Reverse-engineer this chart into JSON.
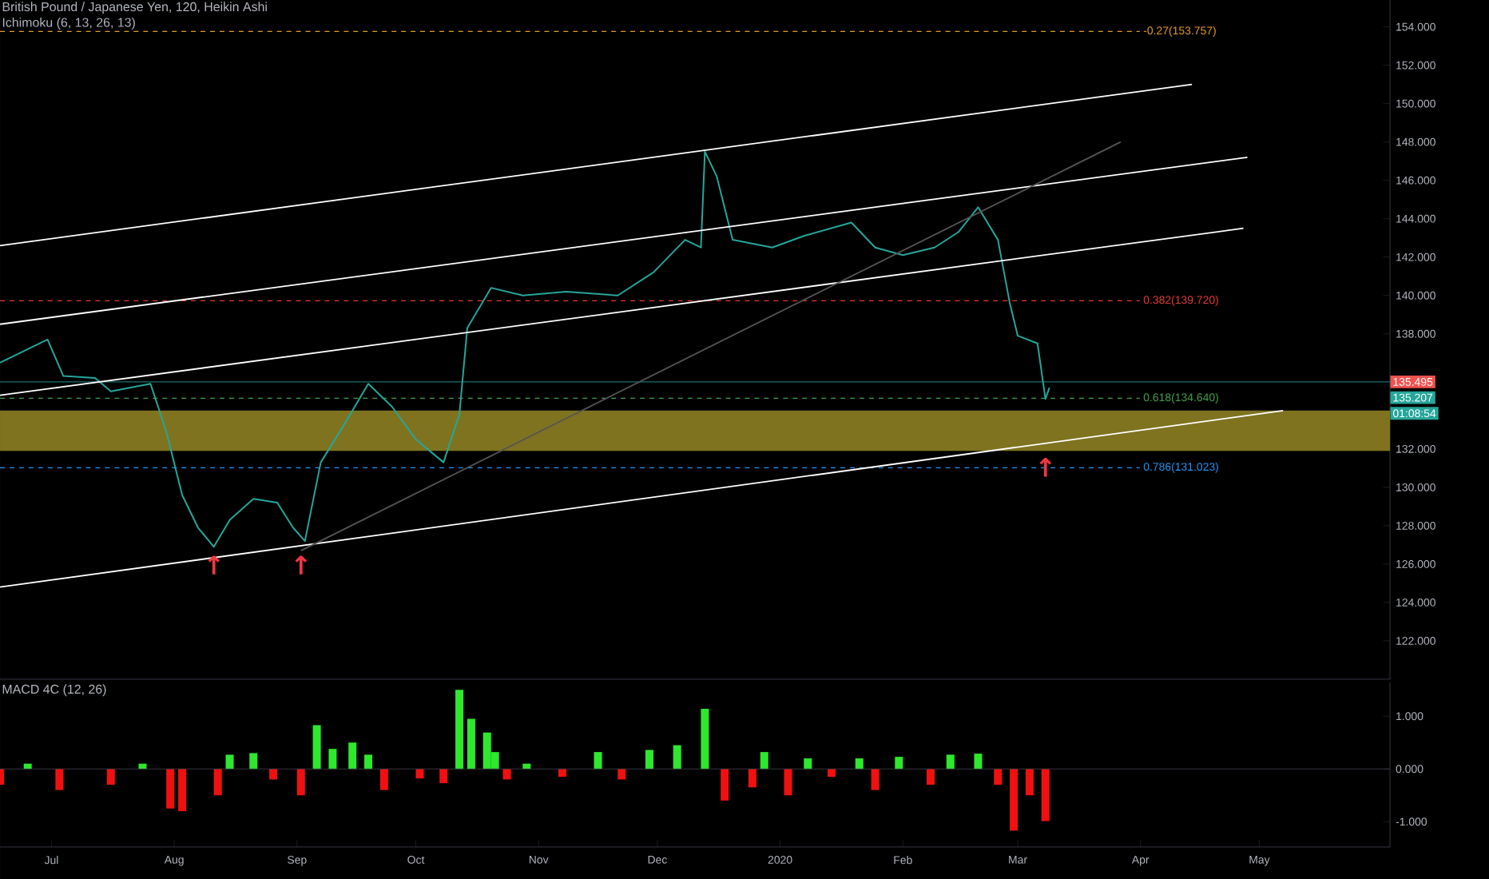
{
  "chart_data": [
    {
      "type": "line",
      "title": "British Pound / Japanese Yen, 120, Heikin Ashi",
      "subtitle": "Ichimoku (6, 13, 26, 13)",
      "xlim": [
        "2019-06-18",
        "2020-06-03"
      ],
      "ylim": [
        120,
        155.4
      ],
      "tick_labels": "y",
      "yticks": [
        {
          "value": 122,
          "label": "122.000"
        },
        {
          "value": 124,
          "label": "124.000"
        },
        {
          "value": 126,
          "label": "126.000"
        },
        {
          "value": 128,
          "label": "128.000"
        },
        {
          "value": 130,
          "label": "130.000"
        },
        {
          "value": 132,
          "label": "132.000"
        },
        {
          "value": 138,
          "label": "138.000"
        },
        {
          "value": 140,
          "label": "140.000"
        },
        {
          "value": 142,
          "label": "142.000"
        },
        {
          "value": 144,
          "label": "144.000"
        },
        {
          "value": 146,
          "label": "146.000"
        },
        {
          "value": 148,
          "label": "148.000"
        },
        {
          "value": 150,
          "label": "150.000"
        },
        {
          "value": 152,
          "label": "152.000"
        },
        {
          "value": 154,
          "label": "154.000"
        }
      ],
      "series": [
        {
          "color": "#26a69a",
          "x": [
            "2019-06-18",
            "2019-06-30",
            "2019-07-04",
            "2019-07-12",
            "2019-07-16",
            "2019-07-26",
            "2019-07-30",
            "2019-08-03",
            "2019-08-07",
            "2019-08-11",
            "2019-08-15",
            "2019-08-21",
            "2019-08-27",
            "2019-08-31",
            "2019-09-03",
            "2019-09-07",
            "2019-09-13",
            "2019-09-19",
            "2019-09-25",
            "2019-10-01",
            "2019-10-08",
            "2019-10-12",
            "2019-10-14",
            "2019-10-20",
            "2019-10-28",
            "2019-11-08",
            "2019-11-21",
            "2019-11-30",
            "2019-12-08",
            "2019-12-12",
            "2019-12-13",
            "2019-12-16",
            "2019-12-20",
            "2019-12-30",
            "2020-01-07",
            "2020-01-19",
            "2020-01-25",
            "2020-02-01",
            "2020-02-09",
            "2020-02-15",
            "2020-02-20",
            "2020-02-25",
            "2020-02-28",
            "2020-03-01",
            "2020-03-06",
            "2020-03-08",
            "2020-03-09"
          ],
          "values": [
            136.5,
            137.7,
            135.8,
            135.7,
            135.0,
            135.4,
            132.9,
            129.6,
            127.9,
            126.9,
            128.3,
            129.4,
            129.2,
            127.9,
            127.2,
            131.3,
            133.3,
            135.4,
            134.2,
            132.5,
            131.3,
            133.8,
            138.3,
            140.4,
            140.0,
            140.2,
            140.0,
            141.2,
            142.9,
            142.5,
            147.5,
            146.2,
            142.9,
            142.5,
            143.1,
            143.8,
            142.5,
            142.1,
            142.5,
            143.3,
            144.6,
            142.9,
            139.6,
            137.9,
            137.5,
            134.6,
            135.2
          ]
        },
        {
          "color": "#ffffff",
          "x": [
            "2019-06-18",
            "2020-04-14"
          ],
          "values": [
            142.6,
            151.0
          ]
        },
        {
          "color": "#ffffff",
          "x": [
            "2019-06-18",
            "2020-04-28"
          ],
          "values": [
            138.5,
            147.2
          ]
        },
        {
          "color": "#ffffff",
          "x": [
            "2019-06-18",
            "2020-04-27"
          ],
          "values": [
            134.8,
            143.5
          ]
        },
        {
          "color": "#ffffff",
          "x": [
            "2019-06-18",
            "2020-05-07"
          ],
          "values": [
            124.8,
            134.0
          ]
        },
        {
          "color": "#555555",
          "x": [
            "2019-09-02",
            "2020-03-27"
          ],
          "values": [
            126.7,
            148.0
          ]
        }
      ],
      "ref_lines": [
        {
          "axis": "y",
          "value": 153.757,
          "label": "-0.27(153.757)",
          "color": "#e69a28",
          "line_style": "dashed"
        },
        {
          "axis": "y",
          "value": 139.72,
          "label": "0.382(139.720)",
          "color": "#e53935",
          "line_style": "dashed"
        },
        {
          "axis": "y",
          "value": 134.64,
          "label": "0.618(134.640)",
          "color": "#43a047",
          "line_style": "dashed"
        },
        {
          "axis": "y",
          "value": 131.023,
          "label": "0.786(131.023)",
          "color": "#2196f3",
          "line_style": "dashed"
        },
        {
          "axis": "y",
          "value": 135.495,
          "label": "135.495",
          "color": "#1e8c8c",
          "line_style": "solid"
        }
      ],
      "bands": [
        {
          "axis": "y",
          "from": 131.9,
          "to": 134.0,
          "color": "#7f7320"
        }
      ],
      "annotations": [
        {
          "text": "↑",
          "x": "2019-08-11",
          "y": 126.7
        },
        {
          "text": "↑",
          "x": "2019-09-02",
          "y": 126.7
        },
        {
          "text": "↑",
          "x": "2020-03-08",
          "y": 131.8
        },
        "135.207",
        "01:08:54"
      ]
    },
    {
      "type": "bar",
      "title": "MACD 4C (12, 26)",
      "xlim": [
        "2019-06-18",
        "2020-06-03"
      ],
      "ylim": [
        -1.48,
        1.64
      ],
      "yticks": [
        {
          "value": -1,
          "label": "-1.000"
        },
        {
          "value": 0,
          "label": "0.000"
        },
        {
          "value": 1,
          "label": "1.000"
        }
      ],
      "xticks": [
        {
          "value": "2019-07-01",
          "label": "Jul"
        },
        {
          "value": "2019-08-01",
          "label": "Aug"
        },
        {
          "value": "2019-09-01",
          "label": "Sep"
        },
        {
          "value": "2019-10-01",
          "label": "Oct"
        },
        {
          "value": "2019-11-01",
          "label": "Nov"
        },
        {
          "value": "2019-12-01",
          "label": "Dec"
        },
        {
          "value": "2020-01-01",
          "label": "2020"
        },
        {
          "value": "2020-02-01",
          "label": "Feb"
        },
        {
          "value": "2020-03-01",
          "label": "Mar"
        },
        {
          "value": "2020-04-01",
          "label": "Apr"
        },
        {
          "value": "2020-05-01",
          "label": "May"
        }
      ],
      "x": [
        "2019-06-18",
        "2019-06-25",
        "2019-07-03",
        "2019-07-16",
        "2019-07-24",
        "2019-07-31",
        "2019-08-03",
        "2019-08-12",
        "2019-08-15",
        "2019-08-21",
        "2019-08-26",
        "2019-09-02",
        "2019-09-06",
        "2019-09-10",
        "2019-09-15",
        "2019-09-19",
        "2019-09-23",
        "2019-10-02",
        "2019-10-08",
        "2019-10-12",
        "2019-10-15",
        "2019-10-19",
        "2019-10-21",
        "2019-10-24",
        "2019-10-29",
        "2019-11-07",
        "2019-11-16",
        "2019-11-22",
        "2019-11-29",
        "2019-12-06",
        "2019-12-13",
        "2019-12-18",
        "2019-12-25",
        "2019-12-28",
        "2020-01-03",
        "2020-01-08",
        "2020-01-14",
        "2020-01-21",
        "2020-01-25",
        "2020-01-31",
        "2020-02-08",
        "2020-02-13",
        "2020-02-20",
        "2020-02-25",
        "2020-02-29",
        "2020-03-04",
        "2020-03-08"
      ],
      "values": [
        -0.3,
        0.1,
        -0.4,
        -0.3,
        0.1,
        -0.75,
        -0.8,
        -0.5,
        0.27,
        0.3,
        -0.2,
        -0.5,
        0.83,
        0.38,
        0.5,
        0.27,
        -0.4,
        -0.18,
        -0.27,
        1.5,
        0.95,
        0.69,
        0.32,
        -0.2,
        0.1,
        -0.15,
        0.32,
        -0.2,
        0.36,
        0.45,
        1.14,
        -0.6,
        -0.35,
        0.32,
        -0.5,
        0.2,
        -0.15,
        0.2,
        -0.4,
        0.23,
        -0.3,
        0.27,
        0.29,
        -0.3,
        -1.17,
        -0.5,
        -0.99
      ],
      "colors": [
        "#f01010",
        "#2ee82e",
        "#f01010",
        "#f01010",
        "#2ee82e",
        "#f01010",
        "#f01010",
        "#f01010",
        "#2ee82e",
        "#2ee82e",
        "#f01010",
        "#f01010",
        "#2ee82e",
        "#2ee82e",
        "#2ee82e",
        "#2ee82e",
        "#f01010",
        "#f01010",
        "#f01010",
        "#2ee82e",
        "#2ee82e",
        "#2ee82e",
        "#2ee82e",
        "#f01010",
        "#2ee82e",
        "#f01010",
        "#2ee82e",
        "#f01010",
        "#2ee82e",
        "#2ee82e",
        "#2ee82e",
        "#f01010",
        "#f01010",
        "#2ee82e",
        "#f01010",
        "#2ee82e",
        "#f01010",
        "#2ee82e",
        "#f01010",
        "#2ee82e",
        "#f01010",
        "#2ee82e",
        "#2ee82e",
        "#f01010",
        "#f01010",
        "#f01010",
        "#f01010"
      ]
    }
  ]
}
